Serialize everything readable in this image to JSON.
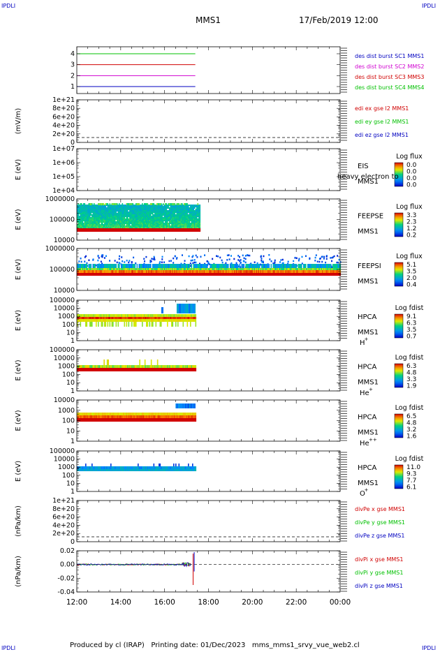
{
  "corners": {
    "tl": "IPDLI",
    "tr": "IPDLI",
    "bl": "IPDLI",
    "br": "IPDLI"
  },
  "title": "MMS1",
  "datetime": "17/Feb/2019 12:00",
  "footer": {
    "producer": "Produced by cl (IRAP)",
    "printing": "Printing date: 01/Dec/2023",
    "script": "mms_mms1_srvy_vue_web2.cl"
  },
  "colors": {
    "mms1": "#0000c0",
    "mms2": "#d000d0",
    "mms3": "#d00000",
    "mms4": "#00c000"
  },
  "chart_data": {
    "type": "line",
    "x_ticks": [
      "12:00",
      "14:00",
      "16:00",
      "18:00",
      "20:00",
      "22:00",
      "00:00"
    ],
    "x_range_hours": [
      12,
      24
    ],
    "panels": [
      {
        "id": "burst",
        "type": "line",
        "ylabel": "",
        "yticks": [
          "1",
          "2",
          "3",
          "4"
        ],
        "series": [
          {
            "name": "des dist burst SC1 MMS1",
            "color": "#0000c0",
            "y": 1,
            "x_end": 17.4
          },
          {
            "name": "des dist burst SC2 MMS2",
            "color": "#d000d0",
            "y": 2,
            "x_end": 17.4
          },
          {
            "name": "des dist burst SC3 MMS3",
            "color": "#d00000",
            "y": 3,
            "x_end": 17.4
          },
          {
            "name": "des dist burst SC4 MMS4",
            "color": "#00c000",
            "y": 4,
            "x_end": 17.4
          }
        ]
      },
      {
        "id": "edi",
        "type": "line",
        "ylabel": "(mV/m)",
        "yticks": [
          "1e+21",
          "8e+20",
          "6e+20",
          "4e+20",
          "2e+20",
          "0"
        ],
        "series": [
          {
            "name": "edi ex gse l2 MMS1",
            "color": "#d00000"
          },
          {
            "name": "edi ey gse l2 MMS1",
            "color": "#00c000"
          },
          {
            "name": "edi ez gse l2 MMS1",
            "color": "#0000c0"
          }
        ]
      },
      {
        "id": "eis",
        "type": "heatmap",
        "ylabel": "E (eV)",
        "yticks": [
          "1e+07",
          "1e+06",
          "1e+05",
          "1e+04"
        ],
        "labels": [
          "EIS",
          "MMS1"
        ],
        "overlay_text": "heavy electron to",
        "colorbar": {
          "title": "Log flux",
          "ticks": [
            "0.0",
            "0.0",
            "0.0",
            "0.0"
          ]
        }
      },
      {
        "id": "feepse",
        "type": "heatmap",
        "ylabel": "E (eV)",
        "yticks": [
          "1000000",
          "100000",
          "10000"
        ],
        "labels": [
          "FEEPSE",
          "MMS1"
        ],
        "colorbar": {
          "title": "Log flux",
          "ticks": [
            "3.3",
            "2.3",
            "1.2",
            "0.2"
          ]
        }
      },
      {
        "id": "feepsi",
        "type": "heatmap",
        "ylabel": "E (eV)",
        "yticks": [
          "1000000",
          "100000",
          "10000"
        ],
        "labels": [
          "FEEPSI",
          "MMS1"
        ],
        "colorbar": {
          "title": "Log flux",
          "ticks": [
            "5.1",
            "3.5",
            "2.0",
            "0.4"
          ]
        }
      },
      {
        "id": "hpca_h",
        "type": "heatmap",
        "ylabel": "E (eV)",
        "yticks": [
          "100000",
          "10000",
          "1000",
          "100",
          "10",
          "1"
        ],
        "labels": [
          "HPCA",
          "MMS1"
        ],
        "species": "H",
        "charge": "+",
        "colorbar": {
          "title": "Log fdist",
          "ticks": [
            "9.1",
            "6.3",
            "3.5",
            "0.7"
          ]
        }
      },
      {
        "id": "hpca_he",
        "type": "heatmap",
        "ylabel": "E (eV)",
        "yticks": [
          "100000",
          "10000",
          "1000",
          "100",
          "10",
          "1"
        ],
        "labels": [
          "HPCA",
          "MMS1"
        ],
        "species": "He",
        "charge": "+",
        "colorbar": {
          "title": "Log fdist",
          "ticks": [
            "6.3",
            "4.8",
            "3.3",
            "1.9"
          ]
        }
      },
      {
        "id": "hpca_hepp",
        "type": "heatmap",
        "ylabel": "E (eV)",
        "yticks": [
          "10000",
          "1000",
          "100",
          "10",
          "1"
        ],
        "labels": [
          "HPCA",
          "MMS1"
        ],
        "species": "He",
        "charge": "++",
        "colorbar": {
          "title": "Log fdist",
          "ticks": [
            "6.5",
            "4.8",
            "3.2",
            "1.6"
          ]
        }
      },
      {
        "id": "hpca_o",
        "type": "heatmap",
        "ylabel": "E (eV)",
        "yticks": [
          "100000",
          "10000",
          "1000",
          "100",
          "10",
          "1"
        ],
        "labels": [
          "HPCA",
          "MMS1"
        ],
        "species": "O",
        "charge": "+",
        "colorbar": {
          "title": "Log fdist",
          "ticks": [
            "11.0",
            "9.3",
            "7.7",
            "6.1"
          ]
        }
      },
      {
        "id": "divpe",
        "type": "line",
        "ylabel": "(nPa/km)",
        "yticks": [
          "1e+21",
          "8e+20",
          "6e+20",
          "4e+20",
          "2e+20",
          "0"
        ],
        "series": [
          {
            "name": "divPe x gse MMS1",
            "color": "#d00000"
          },
          {
            "name": "divPe y gse MMS1",
            "color": "#00c000"
          },
          {
            "name": "divPe z gse MMS1",
            "color": "#0000c0"
          }
        ]
      },
      {
        "id": "divpi",
        "type": "line",
        "ylabel": "(nPa/km)",
        "yticks": [
          "0.02",
          "0.00",
          "-0.02",
          "-0.04"
        ],
        "series": [
          {
            "name": "divPi x gse MMS1",
            "color": "#d00000"
          },
          {
            "name": "divPi y gse MMS1",
            "color": "#00c000"
          },
          {
            "name": "divPi z gse MMS1",
            "color": "#0000c0"
          }
        ]
      }
    ]
  }
}
